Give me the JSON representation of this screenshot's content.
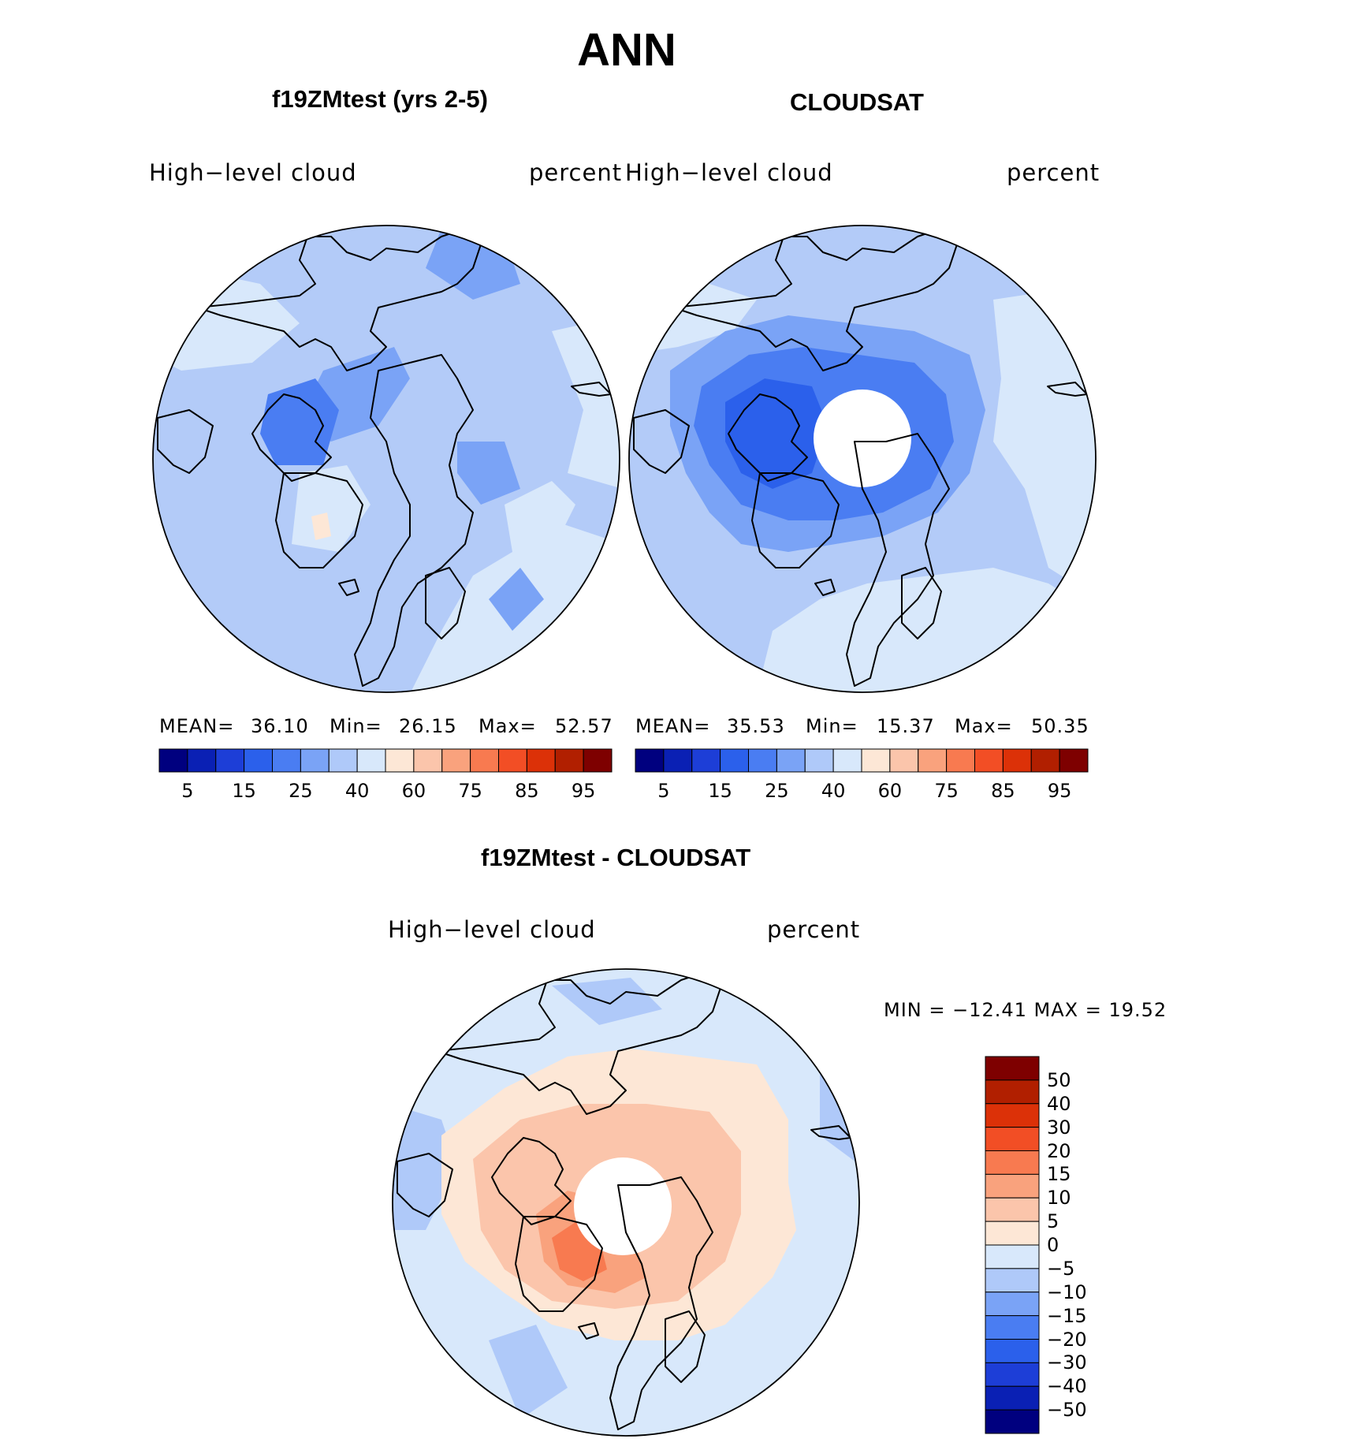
{
  "page_title": "ANN",
  "panels": {
    "test": {
      "title": "f19ZMtest (yrs 2-5)",
      "left_label": "High−level  cloud",
      "right_label": "percent",
      "mean_label": "MEAN=",
      "mean_value": "36.10",
      "min_label": "Min=",
      "min_value": "26.15",
      "max_label": "Max=",
      "max_value": "52.57"
    },
    "obs": {
      "title": "CLOUDSAT",
      "left_label": "High−level  cloud",
      "right_label": "percent",
      "mean_label": "MEAN=",
      "mean_value": "35.53",
      "min_label": "Min=",
      "min_value": "15.37",
      "max_label": "Max=",
      "max_value": "50.35"
    },
    "diff": {
      "title": "f19ZMtest - CLOUDSAT",
      "left_label": "High−level  cloud",
      "right_label": "percent",
      "minmax_text": "MIN  =  −12.41  MAX  =    19.52"
    }
  },
  "colorbar_abs": {
    "colors": [
      "#00007f",
      "#0a20b4",
      "#1d3ed7",
      "#2b60eb",
      "#4a7df2",
      "#7aa3f6",
      "#afc9f9",
      "#d8e8fb",
      "#fde7d6",
      "#fbc5ab",
      "#f9a27d",
      "#f87a50",
      "#f24e25",
      "#dc3108",
      "#b11f00",
      "#7e0000"
    ],
    "tick_labels": [
      "5",
      "15",
      "25",
      "40",
      "60",
      "75",
      "85",
      "95"
    ]
  },
  "colorbar_diff": {
    "colors_top_to_bottom": [
      "#7e0000",
      "#b11f00",
      "#dc3108",
      "#f24e25",
      "#f87a50",
      "#f9a27d",
      "#fbc5ab",
      "#fde7d6",
      "#d8e8fb",
      "#afc9f9",
      "#7aa3f6",
      "#4a7df2",
      "#2b60eb",
      "#1d3ed7",
      "#0a20b4",
      "#00007f"
    ],
    "tick_labels": [
      "50",
      "40",
      "30",
      "20",
      "15",
      "10",
      "5",
      "0",
      "−5",
      "−10",
      "−15",
      "−20",
      "−30",
      "−40",
      "−50"
    ]
  },
  "map_colors": {
    "abs_background": "#b3cbf8",
    "abs_light": "#d8e8fb",
    "abs_mid": "#7aa3f6",
    "abs_dark": "#4a7df2",
    "abs_darker": "#2b60eb",
    "abs_darkest": "#1d3ed7",
    "abs_warm": "#fde7d6",
    "diff_background": "#d8e8fb",
    "diff_warm1": "#fde7d6",
    "diff_warm2": "#fbc5ab",
    "diff_warm3": "#f9a27d",
    "diff_warm4": "#f87a50",
    "diff_cool": "#afc9f9"
  }
}
